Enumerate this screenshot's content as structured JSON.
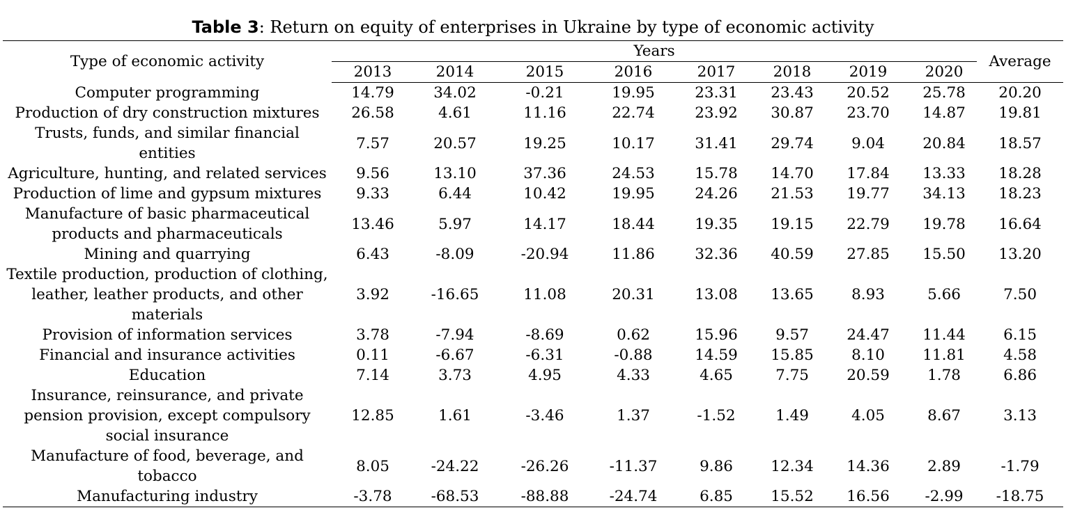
{
  "caption": {
    "label": "Table 3",
    "text": ": Return on equity of enterprises in Ukraine by type of economic activity"
  },
  "headers": {
    "activity": "Type of economic activity",
    "years_group": "Years",
    "average": "Average",
    "years": [
      "2013",
      "2014",
      "2015",
      "2016",
      "2017",
      "2018",
      "2019",
      "2020"
    ]
  },
  "rows": [
    {
      "activity": "Computer programming",
      "values": [
        "14.79",
        "34.02",
        "-0.21",
        "19.95",
        "23.31",
        "23.43",
        "20.52",
        "25.78"
      ],
      "average": "20.20"
    },
    {
      "activity": "Production of dry construction mixtures",
      "values": [
        "26.58",
        "4.61",
        "11.16",
        "22.74",
        "23.92",
        "30.87",
        "23.70",
        "14.87"
      ],
      "average": "19.81"
    },
    {
      "activity": "Trusts, funds, and similar financial entities",
      "values": [
        "7.57",
        "20.57",
        "19.25",
        "10.17",
        "31.41",
        "29.74",
        "9.04",
        "20.84"
      ],
      "average": "18.57"
    },
    {
      "activity": "Agriculture, hunting, and related services",
      "values": [
        "9.56",
        "13.10",
        "37.36",
        "24.53",
        "15.78",
        "14.70",
        "17.84",
        "13.33"
      ],
      "average": "18.28"
    },
    {
      "activity": "Production of lime and gypsum mixtures",
      "values": [
        "9.33",
        "6.44",
        "10.42",
        "19.95",
        "24.26",
        "21.53",
        "19.77",
        "34.13"
      ],
      "average": "18.23"
    },
    {
      "activity": "Manufacture of basic pharmaceutical products and pharmaceuticals",
      "values": [
        "13.46",
        "5.97",
        "14.17",
        "18.44",
        "19.35",
        "19.15",
        "22.79",
        "19.78"
      ],
      "average": "16.64"
    },
    {
      "activity": "Mining and quarrying",
      "values": [
        "6.43",
        "-8.09",
        "-20.94",
        "11.86",
        "32.36",
        "40.59",
        "27.85",
        "15.50"
      ],
      "average": "13.20"
    },
    {
      "activity": "Textile production, production of clothing, leather, leather products, and other materials",
      "values": [
        "3.92",
        "-16.65",
        "11.08",
        "20.31",
        "13.08",
        "13.65",
        "8.93",
        "5.66"
      ],
      "average": "7.50"
    },
    {
      "activity": "Provision of information services",
      "values": [
        "3.78",
        "-7.94",
        "-8.69",
        "0.62",
        "15.96",
        "9.57",
        "24.47",
        "11.44"
      ],
      "average": "6.15"
    },
    {
      "activity": "Financial and insurance activities",
      "values": [
        "0.11",
        "-6.67",
        "-6.31",
        "-0.88",
        "14.59",
        "15.85",
        "8.10",
        "11.81"
      ],
      "average": "4.58"
    },
    {
      "activity": "Education",
      "values": [
        "7.14",
        "3.73",
        "4.95",
        "4.33",
        "4.65",
        "7.75",
        "20.59",
        "1.78"
      ],
      "average": "6.86"
    },
    {
      "activity": "Insurance, reinsurance, and private pension provision, except compulsory social insurance",
      "values": [
        "12.85",
        "1.61",
        "-3.46",
        "1.37",
        "-1.52",
        "1.49",
        "4.05",
        "8.67"
      ],
      "average": "3.13"
    },
    {
      "activity": "Manufacture of food, beverage, and tobacco",
      "values": [
        "8.05",
        "-24.22",
        "-26.26",
        "-11.37",
        "9.86",
        "12.34",
        "14.36",
        "2.89"
      ],
      "average": "-1.79"
    },
    {
      "activity": "Manufacturing industry",
      "values": [
        "-3.78",
        "-68.53",
        "-88.88",
        "-24.74",
        "6.85",
        "15.52",
        "16.56",
        "-2.99"
      ],
      "average": "-18.75"
    }
  ]
}
